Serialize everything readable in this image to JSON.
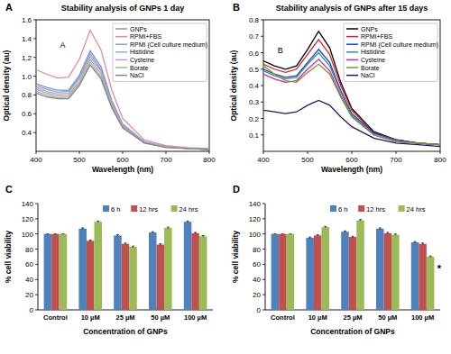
{
  "chart_data": [
    {
      "type": "line",
      "panel": "A",
      "title": "Stability analysis of GNPs 1 day",
      "x_label": "Wavelength (nm)",
      "y_label": "Optical density (au)",
      "x": [
        400,
        425,
        450,
        475,
        500,
        525,
        550,
        575,
        600,
        650,
        700,
        750,
        800
      ],
      "xlim": [
        400,
        800
      ],
      "xticks": [
        400,
        500,
        600,
        700,
        800
      ],
      "ylim": [
        0.2,
        1.6
      ],
      "yticks": [
        0.4,
        0.6,
        0.8,
        {
          "value": 1,
          "label": "1.0"
        },
        1.2,
        1.4,
        1.6
      ],
      "legend": "upper right",
      "annotations": [
        {
          "text": "A",
          "x": 455,
          "y": 1.3
        }
      ],
      "series": [
        {
          "name": "GNPs",
          "color": "#8c8cd0",
          "values": [
            0.92,
            0.88,
            0.85,
            0.85,
            1.01,
            1.27,
            1.1,
            0.74,
            0.49,
            0.3,
            0.25,
            0.23,
            0.22
          ]
        },
        {
          "name": "RPMI+FBS",
          "color": "#e58a9a",
          "values": [
            1.07,
            1.02,
            0.98,
            0.99,
            1.18,
            1.49,
            1.28,
            0.85,
            0.55,
            0.32,
            0.26,
            0.24,
            0.23
          ]
        },
        {
          "name": "RPMI (Cell culture medium)",
          "color": "#7fa0d8",
          "values": [
            0.9,
            0.86,
            0.83,
            0.84,
            0.99,
            1.24,
            1.07,
            0.72,
            0.48,
            0.3,
            0.25,
            0.23,
            0.22
          ]
        },
        {
          "name": "Histidine",
          "color": "#7fbfb0",
          "values": [
            0.88,
            0.84,
            0.81,
            0.82,
            0.97,
            1.21,
            1.05,
            0.71,
            0.47,
            0.29,
            0.25,
            0.23,
            0.22
          ]
        },
        {
          "name": "Cysteine",
          "color": "#d68fd0",
          "values": [
            0.86,
            0.82,
            0.79,
            0.8,
            0.94,
            1.18,
            1.02,
            0.69,
            0.47,
            0.29,
            0.25,
            0.23,
            0.22
          ]
        },
        {
          "name": "Borate",
          "color": "#a9b870",
          "values": [
            0.84,
            0.8,
            0.77,
            0.78,
            0.92,
            1.15,
            0.99,
            0.68,
            0.46,
            0.29,
            0.25,
            0.23,
            0.22
          ]
        },
        {
          "name": "NaCl",
          "color": "#8080a8",
          "values": [
            0.82,
            0.78,
            0.76,
            0.76,
            0.9,
            1.12,
            0.97,
            0.66,
            0.45,
            0.29,
            0.24,
            0.23,
            0.22
          ]
        }
      ]
    },
    {
      "type": "line",
      "panel": "B",
      "title": "Stability analysis of GNPs after 15 days",
      "x_label": "Wavelength (nm)",
      "y_label": "Optical density (au)",
      "x": [
        400,
        425,
        450,
        475,
        500,
        525,
        550,
        575,
        600,
        650,
        700,
        750,
        800
      ],
      "xlim": [
        400,
        800
      ],
      "xticks": [
        400,
        500,
        600,
        700,
        800
      ],
      "ylim": [
        0,
        0.8
      ],
      "yticks": [
        0.1,
        0.2,
        0.3,
        0.4,
        0.5,
        0.6,
        0.7,
        0.8
      ],
      "legend": "upper right",
      "annotations": [
        {
          "text": "B",
          "x": 432,
          "y": 0.6
        }
      ],
      "series": [
        {
          "name": "GNPs",
          "color": "#000000",
          "values": [
            0.55,
            0.52,
            0.5,
            0.52,
            0.62,
            0.73,
            0.63,
            0.42,
            0.26,
            0.12,
            0.07,
            0.05,
            0.04
          ]
        },
        {
          "name": "RPMI+FBS",
          "color": "#e0202a",
          "values": [
            0.53,
            0.5,
            0.48,
            0.5,
            0.59,
            0.68,
            0.59,
            0.4,
            0.25,
            0.11,
            0.07,
            0.05,
            0.04
          ]
        },
        {
          "name": "RPMI (Cell culture medium)",
          "color": "#1f3fd0",
          "values": [
            0.5,
            0.47,
            0.45,
            0.46,
            0.54,
            0.62,
            0.54,
            0.37,
            0.23,
            0.11,
            0.07,
            0.05,
            0.04
          ]
        },
        {
          "name": "Histidine",
          "color": "#2a9a8a",
          "values": [
            0.49,
            0.46,
            0.44,
            0.45,
            0.53,
            0.6,
            0.52,
            0.36,
            0.22,
            0.1,
            0.06,
            0.05,
            0.04
          ]
        },
        {
          "name": "Cysteine",
          "color": "#d020c0",
          "values": [
            0.47,
            0.44,
            0.42,
            0.43,
            0.5,
            0.56,
            0.49,
            0.34,
            0.21,
            0.1,
            0.06,
            0.05,
            0.04
          ]
        },
        {
          "name": "Borate",
          "color": "#7a9a20",
          "values": [
            0.52,
            0.47,
            0.43,
            0.42,
            0.48,
            0.53,
            0.47,
            0.33,
            0.21,
            0.1,
            0.06,
            0.05,
            0.04
          ]
        },
        {
          "name": "NaCl",
          "color": "#1a1a6a",
          "values": [
            0.25,
            0.24,
            0.23,
            0.24,
            0.28,
            0.31,
            0.28,
            0.21,
            0.15,
            0.08,
            0.05,
            0.04,
            0.03
          ]
        }
      ]
    },
    {
      "type": "bar",
      "panel": "C",
      "x_label": "Concentration of GNPs",
      "y_label": "% cell viability",
      "categories": [
        "Control",
        "10 µM",
        "25 µM",
        "50 µM",
        "100 µM"
      ],
      "ylim": [
        0,
        140
      ],
      "yticks": [
        0,
        20,
        40,
        60,
        80,
        100,
        120,
        140
      ],
      "legend": "upper right",
      "series": [
        {
          "name": "6 h",
          "color": "#4f81bd",
          "values": [
            100,
            107,
            98,
            102,
            116
          ],
          "errors": [
            0,
            1,
            1,
            1,
            1
          ]
        },
        {
          "name": "12 hrs",
          "color": "#c0504d",
          "values": [
            100,
            91,
            87,
            86,
            101
          ],
          "errors": [
            0,
            1,
            1,
            1,
            1
          ]
        },
        {
          "name": "24 hrs",
          "color": "#9bbb59",
          "values": [
            100,
            116,
            83,
            108,
            97
          ],
          "errors": [
            0,
            1,
            1,
            1,
            1
          ]
        }
      ]
    },
    {
      "type": "bar",
      "panel": "D",
      "x_label": "Concentration of GNPs",
      "y_label": "% cell viability",
      "categories": [
        "Control",
        "10 µM",
        "25 µM",
        "50 µM",
        "100 µM"
      ],
      "ylim": [
        0,
        140
      ],
      "yticks": [
        0,
        20,
        40,
        60,
        80,
        100,
        120,
        140
      ],
      "legend": "upper right",
      "annotations": [
        {
          "text": "*",
          "x": "100 µM",
          "y": 55
        }
      ],
      "series": [
        {
          "name": "6 h",
          "color": "#4f81bd",
          "values": [
            100,
            95,
            103,
            107,
            89
          ],
          "errors": [
            0,
            1,
            1,
            1,
            1
          ]
        },
        {
          "name": "12 hrs",
          "color": "#c0504d",
          "values": [
            100,
            98,
            96,
            101,
            87
          ],
          "errors": [
            0,
            1,
            1,
            1,
            1
          ]
        },
        {
          "name": "24 hrs",
          "color": "#9bbb59",
          "values": [
            100,
            109,
            118,
            99,
            70
          ],
          "errors": [
            0,
            1,
            1,
            1,
            1
          ]
        }
      ]
    }
  ]
}
